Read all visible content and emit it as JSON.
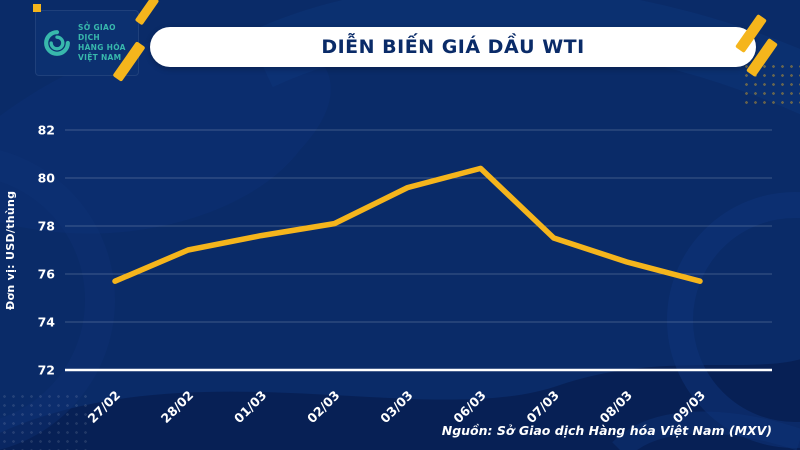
{
  "header": {
    "title": "DIỄN BIẾN GIÁ DẦU WTI",
    "logo": {
      "line1": "SỞ GIAO DỊCH",
      "line2": "HÀNG HÓA",
      "line3": "VIỆT NAM"
    }
  },
  "footer": {
    "source": "Nguồn: Sở Giao dịch Hàng hóa Việt Nam (MXV)"
  },
  "colors": {
    "background": "#0A2B68",
    "accent_yellow": "#F5B51C",
    "banner_text": "#0A2B68",
    "logo_teal": "#38B8AC",
    "grid": "rgba(255,255,255,0.22)",
    "baseline": "#FFFFFF"
  },
  "chart_data": {
    "type": "line",
    "title": "DIỄN BIẾN GIÁ DẦU WTI",
    "categories": [
      "27/02",
      "28/02",
      "01/03",
      "02/03",
      "03/03",
      "06/03",
      "07/03",
      "08/03",
      "09/03"
    ],
    "values": [
      75.7,
      77.0,
      77.6,
      78.1,
      79.6,
      80.4,
      77.5,
      76.5,
      75.7
    ],
    "xlabel": "",
    "ylabel": "Đơn vị: USD/thùng",
    "ylim": [
      72,
      82
    ],
    "yticks": [
      72,
      74,
      76,
      78,
      80,
      82
    ],
    "grid": true,
    "legend": "none",
    "line_color": "#F5B51C"
  }
}
